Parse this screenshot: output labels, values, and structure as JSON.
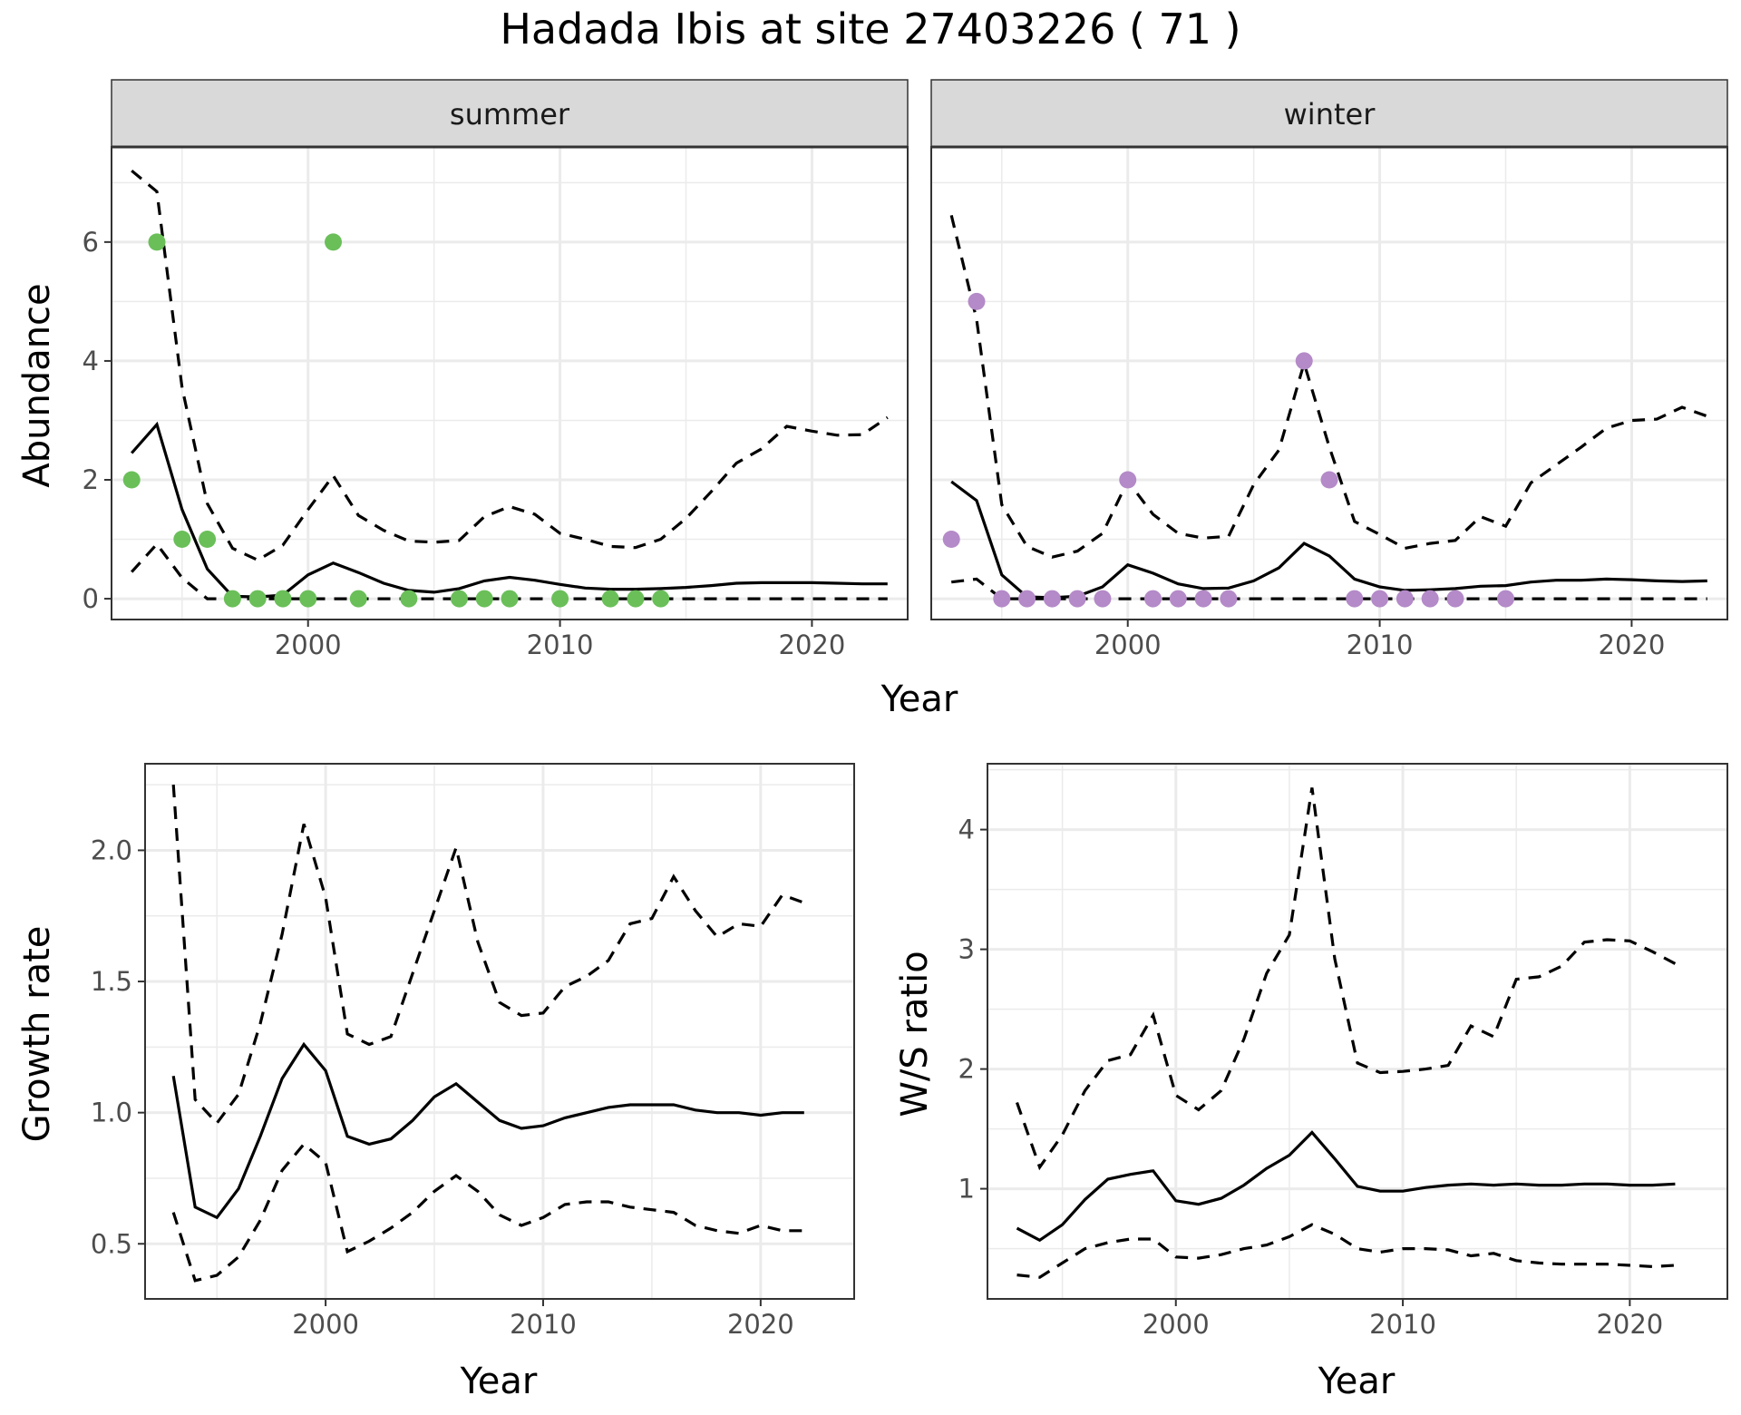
{
  "figure": {
    "title": "Hadada Ibis at site 27403226 ( 71 )"
  },
  "colors": {
    "summer_points": "#6abf59",
    "winter_points": "#b48ac8",
    "lines": "#000000",
    "strip_bg": "#d9d9d9",
    "grid": "#ebebeb"
  },
  "chart_data": [
    {
      "type": "line",
      "panel": "summer",
      "facet_label": "summer",
      "xlabel": "Year",
      "ylabel": "Abundance",
      "xlim": [
        1992.2,
        2023.8
      ],
      "ylim": [
        -0.35,
        7.6
      ],
      "xticks": [
        2000,
        2010,
        2020
      ],
      "yticks": [
        0,
        2,
        4,
        6
      ],
      "grid": true,
      "observed": {
        "x": [
          1993,
          1994,
          1995,
          1996,
          1997,
          1998,
          1999,
          2000,
          2001,
          2002,
          2004,
          2006,
          2007,
          2008,
          2010,
          2012,
          2013,
          2014
        ],
        "y": [
          2,
          6,
          1,
          1,
          0,
          0,
          0,
          0,
          6,
          0,
          0,
          0,
          0,
          0,
          0,
          0,
          0,
          0
        ]
      },
      "series": [
        {
          "style": "solid",
          "x": [
            1993,
            1994,
            1995,
            1996,
            1997,
            1998,
            1999,
            2000,
            2001,
            2002,
            2003,
            2004,
            2005,
            2006,
            2007,
            2008,
            2009,
            2010,
            2011,
            2012,
            2013,
            2014,
            2015,
            2016,
            2017,
            2018,
            2019,
            2020,
            2021,
            2022,
            2023
          ],
          "y": [
            2.45,
            2.93,
            1.5,
            0.5,
            0.04,
            0.03,
            0.06,
            0.4,
            0.6,
            0.44,
            0.26,
            0.14,
            0.11,
            0.17,
            0.3,
            0.36,
            0.31,
            0.24,
            0.18,
            0.16,
            0.16,
            0.17,
            0.19,
            0.22,
            0.26,
            0.27,
            0.27,
            0.27,
            0.26,
            0.25,
            0.25
          ]
        },
        {
          "style": "dashed",
          "x": [
            1993,
            1994,
            1995,
            1996,
            1997,
            1998,
            1999,
            2000,
            2001,
            2002,
            2003,
            2004,
            2005,
            2006,
            2007,
            2008,
            2009,
            2010,
            2011,
            2012,
            2013,
            2014,
            2015,
            2016,
            2017,
            2018,
            2019,
            2020,
            2021,
            2022,
            2023
          ],
          "y": [
            7.2,
            6.85,
            3.55,
            1.6,
            0.85,
            0.65,
            0.9,
            1.5,
            2.07,
            1.4,
            1.15,
            0.97,
            0.95,
            0.98,
            1.38,
            1.55,
            1.42,
            1.1,
            1.0,
            0.88,
            0.86,
            1.0,
            1.35,
            1.8,
            2.28,
            2.52,
            2.9,
            2.82,
            2.75,
            2.76,
            3.05
          ]
        },
        {
          "style": "dashed",
          "x": [
            1993,
            1994,
            1995,
            1996,
            1997,
            1998,
            1999,
            2000,
            2001,
            2002,
            2003,
            2004,
            2005,
            2006,
            2007,
            2008,
            2009,
            2010,
            2011,
            2012,
            2013,
            2014,
            2015,
            2016,
            2017,
            2018,
            2019,
            2020,
            2021,
            2022,
            2023
          ],
          "y": [
            0.45,
            0.92,
            0.35,
            0,
            0,
            0,
            0,
            0,
            0,
            0,
            0,
            0,
            0,
            0,
            0,
            0,
            0,
            0,
            0,
            0,
            0,
            0,
            0,
            0,
            0,
            0,
            0,
            0,
            0,
            0,
            0
          ]
        }
      ]
    },
    {
      "type": "line",
      "panel": "winter",
      "facet_label": "winter",
      "xlabel": "Year",
      "ylabel": "Abundance",
      "xlim": [
        1992.2,
        2023.8
      ],
      "ylim": [
        -0.35,
        7.6
      ],
      "xticks": [
        2000,
        2010,
        2020
      ],
      "yticks": [
        0,
        2,
        4,
        6
      ],
      "grid": true,
      "observed": {
        "x": [
          1993,
          1994,
          1995,
          1996,
          1997,
          1998,
          1999,
          2000,
          2001,
          2002,
          2003,
          2004,
          2007,
          2008,
          2009,
          2010,
          2011,
          2012,
          2013,
          2015
        ],
        "y": [
          1,
          5,
          0,
          0,
          0,
          0,
          0,
          2,
          0,
          0,
          0,
          0,
          4,
          2,
          0,
          0,
          0,
          0,
          0,
          0
        ]
      },
      "series": [
        {
          "style": "solid",
          "x": [
            1993,
            1994,
            1995,
            1996,
            1997,
            1998,
            1999,
            2000,
            2001,
            2002,
            2003,
            2004,
            2005,
            2006,
            2007,
            2008,
            2009,
            2010,
            2011,
            2012,
            2013,
            2014,
            2015,
            2016,
            2017,
            2018,
            2019,
            2020,
            2021,
            2022,
            2023
          ],
          "y": [
            1.97,
            1.65,
            0.4,
            0.03,
            0.02,
            0.04,
            0.2,
            0.57,
            0.43,
            0.25,
            0.17,
            0.18,
            0.3,
            0.52,
            0.93,
            0.72,
            0.33,
            0.2,
            0.14,
            0.15,
            0.17,
            0.21,
            0.22,
            0.28,
            0.31,
            0.31,
            0.33,
            0.32,
            0.3,
            0.29,
            0.3
          ]
        },
        {
          "style": "dashed",
          "x": [
            1993,
            1994,
            1995,
            1996,
            1997,
            1998,
            1999,
            2000,
            2001,
            2002,
            2003,
            2004,
            2005,
            2006,
            2007,
            2008,
            2009,
            2010,
            2011,
            2012,
            2013,
            2014,
            2015,
            2016,
            2017,
            2018,
            2019,
            2020,
            2021,
            2022,
            2023
          ],
          "y": [
            6.45,
            4.7,
            1.58,
            0.88,
            0.7,
            0.8,
            1.1,
            1.98,
            1.42,
            1.1,
            1.02,
            1.05,
            1.92,
            2.5,
            3.96,
            2.55,
            1.3,
            1.08,
            0.85,
            0.93,
            0.98,
            1.38,
            1.22,
            1.95,
            2.25,
            2.55,
            2.87,
            3.0,
            3.02,
            3.22,
            3.07
          ]
        },
        {
          "style": "dashed",
          "x": [
            1993,
            1994,
            1995,
            1996,
            1997,
            1998,
            1999,
            2000,
            2001,
            2002,
            2003,
            2004,
            2005,
            2006,
            2007,
            2008,
            2009,
            2010,
            2011,
            2012,
            2013,
            2014,
            2015,
            2016,
            2017,
            2018,
            2019,
            2020,
            2021,
            2022,
            2023
          ],
          "y": [
            0.28,
            0.33,
            0,
            0,
            0,
            0,
            0,
            0,
            0,
            0,
            0,
            0,
            0,
            0,
            0,
            0,
            0,
            0,
            0,
            0,
            0,
            0,
            0,
            0,
            0,
            0,
            0,
            0,
            0,
            0,
            0
          ]
        }
      ]
    },
    {
      "type": "line",
      "panel": "growth",
      "xlabel": "Year",
      "ylabel": "Growth rate",
      "xlim": [
        1991.7,
        2024.3
      ],
      "ylim": [
        0.29,
        2.33
      ],
      "xticks": [
        2000,
        2010,
        2020
      ],
      "yticks": [
        0.5,
        1.0,
        1.5,
        2.0
      ],
      "ytick_labels": [
        "0.5",
        "1.0",
        "1.5",
        "2.0"
      ],
      "grid": true,
      "series": [
        {
          "style": "solid",
          "x": [
            1993,
            1994,
            1995,
            1996,
            1997,
            1998,
            1999,
            2000,
            2001,
            2002,
            2003,
            2004,
            2005,
            2006,
            2007,
            2008,
            2009,
            2010,
            2011,
            2012,
            2013,
            2014,
            2015,
            2016,
            2017,
            2018,
            2019,
            2020,
            2021,
            2022
          ],
          "y": [
            1.14,
            0.64,
            0.6,
            0.71,
            0.91,
            1.13,
            1.26,
            1.16,
            0.91,
            0.88,
            0.9,
            0.97,
            1.06,
            1.11,
            1.04,
            0.97,
            0.94,
            0.95,
            0.98,
            1.0,
            1.02,
            1.03,
            1.03,
            1.03,
            1.01,
            1.0,
            1.0,
            0.99,
            1.0,
            1.0
          ]
        },
        {
          "style": "dashed",
          "x": [
            1993,
            1994,
            1995,
            1996,
            1997,
            1998,
            1999,
            2000,
            2001,
            2002,
            2003,
            2004,
            2005,
            2006,
            2007,
            2008,
            2009,
            2010,
            2011,
            2012,
            2013,
            2014,
            2015,
            2016,
            2017,
            2018,
            2019,
            2020,
            2021,
            2022
          ],
          "y": [
            2.25,
            1.05,
            0.96,
            1.07,
            1.34,
            1.68,
            2.1,
            1.82,
            1.3,
            1.26,
            1.29,
            1.53,
            1.77,
            2.01,
            1.65,
            1.42,
            1.37,
            1.38,
            1.48,
            1.52,
            1.58,
            1.72,
            1.74,
            1.9,
            1.77,
            1.67,
            1.72,
            1.71,
            1.83,
            1.8
          ]
        },
        {
          "style": "dashed",
          "x": [
            1993,
            1994,
            1995,
            1996,
            1997,
            1998,
            1999,
            2000,
            2001,
            2002,
            2003,
            2004,
            2005,
            2006,
            2007,
            2008,
            2009,
            2010,
            2011,
            2012,
            2013,
            2014,
            2015,
            2016,
            2017,
            2018,
            2019,
            2020,
            2021,
            2022
          ],
          "y": [
            0.62,
            0.36,
            0.38,
            0.45,
            0.59,
            0.78,
            0.88,
            0.81,
            0.47,
            0.51,
            0.56,
            0.62,
            0.7,
            0.76,
            0.7,
            0.61,
            0.57,
            0.6,
            0.65,
            0.66,
            0.66,
            0.64,
            0.63,
            0.62,
            0.57,
            0.55,
            0.54,
            0.57,
            0.55,
            0.55
          ]
        }
      ]
    },
    {
      "type": "line",
      "panel": "ws_ratio",
      "xlabel": "Year",
      "ylabel": "W/S ratio",
      "xlim": [
        1991.7,
        2024.3
      ],
      "ylim": [
        0.08,
        4.55
      ],
      "xticks": [
        2000,
        2010,
        2020
      ],
      "yticks": [
        1,
        2,
        3,
        4
      ],
      "ytick_labels": [
        "1",
        "2",
        "3",
        "4"
      ],
      "grid": true,
      "series": [
        {
          "style": "solid",
          "x": [
            1993,
            1994,
            1995,
            1996,
            1997,
            1998,
            1999,
            2000,
            2001,
            2002,
            2003,
            2004,
            2005,
            2006,
            2007,
            2008,
            2009,
            2010,
            2011,
            2012,
            2013,
            2014,
            2015,
            2016,
            2017,
            2018,
            2019,
            2020,
            2021,
            2022
          ],
          "y": [
            0.67,
            0.57,
            0.7,
            0.91,
            1.08,
            1.12,
            1.15,
            0.9,
            0.87,
            0.92,
            1.03,
            1.17,
            1.28,
            1.47,
            1.25,
            1.02,
            0.98,
            0.98,
            1.01,
            1.03,
            1.04,
            1.03,
            1.04,
            1.03,
            1.03,
            1.04,
            1.04,
            1.03,
            1.03,
            1.04
          ]
        },
        {
          "style": "dashed",
          "x": [
            1993,
            1994,
            1995,
            1996,
            1997,
            1998,
            1999,
            2000,
            2001,
            2002,
            2003,
            2004,
            2005,
            2006,
            2007,
            2008,
            2009,
            2010,
            2011,
            2012,
            2013,
            2014,
            2015,
            2016,
            2017,
            2018,
            2019,
            2020,
            2021,
            2022
          ],
          "y": [
            1.72,
            1.18,
            1.45,
            1.82,
            2.07,
            2.12,
            2.45,
            1.78,
            1.66,
            1.82,
            2.25,
            2.8,
            3.12,
            4.35,
            2.92,
            2.05,
            1.97,
            1.98,
            2.0,
            2.03,
            2.36,
            2.27,
            2.75,
            2.77,
            2.86,
            3.06,
            3.08,
            3.07,
            2.98,
            2.88
          ]
        },
        {
          "style": "dashed",
          "x": [
            1993,
            1994,
            1995,
            1996,
            1997,
            1998,
            1999,
            2000,
            2001,
            2002,
            2003,
            2004,
            2005,
            2006,
            2007,
            2008,
            2009,
            2010,
            2011,
            2012,
            2013,
            2014,
            2015,
            2016,
            2017,
            2018,
            2019,
            2020,
            2021,
            2022
          ],
          "y": [
            0.28,
            0.26,
            0.38,
            0.5,
            0.55,
            0.58,
            0.58,
            0.43,
            0.42,
            0.45,
            0.5,
            0.53,
            0.6,
            0.7,
            0.62,
            0.5,
            0.47,
            0.5,
            0.5,
            0.49,
            0.44,
            0.46,
            0.4,
            0.38,
            0.37,
            0.37,
            0.37,
            0.36,
            0.35,
            0.36
          ]
        }
      ]
    }
  ],
  "shared_labels": {
    "top_xlabel": "Year"
  }
}
